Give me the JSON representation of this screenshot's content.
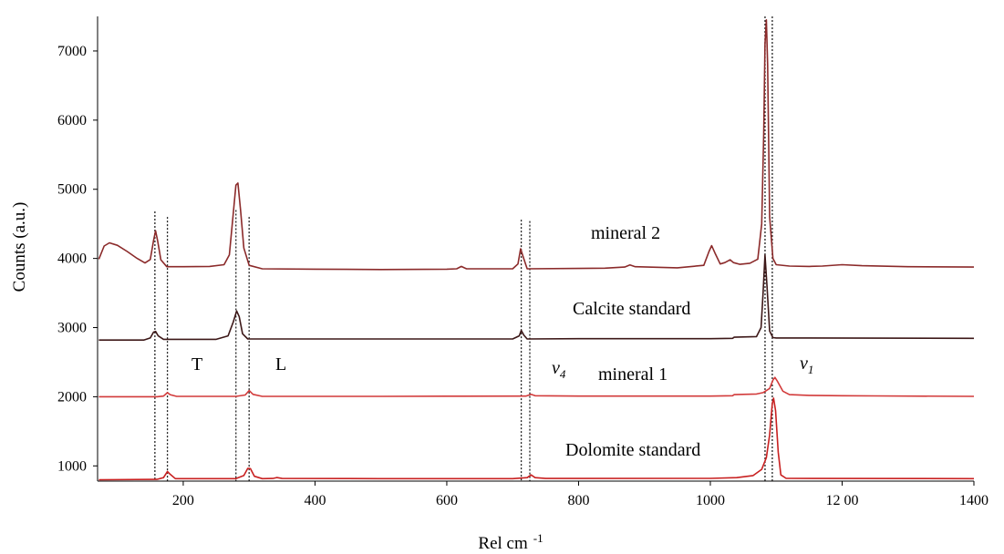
{
  "chart_data": {
    "type": "line",
    "title": "",
    "xlabel": "Rel cm",
    "xlabel_sup": "-1",
    "ylabel": "Counts (a.u.)",
    "xlim": [
      70,
      1400
    ],
    "ylim": [
      780,
      7500
    ],
    "x_ticks": [
      200,
      400,
      600,
      800,
      1000,
      1200,
      1400
    ],
    "x_tick_labels": [
      "200",
      "400",
      "600",
      "800",
      "1000",
      "12 00",
      "1400"
    ],
    "y_ticks": [
      1000,
      2000,
      3000,
      4000,
      5000,
      6000,
      7000
    ],
    "y_tick_labels": [
      "1000",
      "2000",
      "3000",
      "4000",
      "5000",
      "6000",
      "7000"
    ],
    "grid": false,
    "series": [
      {
        "name": "mineral 2",
        "color": "#8b2a2a",
        "points": [
          [
            72,
            3990
          ],
          [
            80,
            4180
          ],
          [
            88,
            4225
          ],
          [
            100,
            4190
          ],
          [
            115,
            4100
          ],
          [
            130,
            4000
          ],
          [
            142,
            3935
          ],
          [
            150,
            3985
          ],
          [
            155,
            4260
          ],
          [
            158,
            4400
          ],
          [
            161,
            4260
          ],
          [
            166,
            3980
          ],
          [
            175,
            3880
          ],
          [
            200,
            3880
          ],
          [
            240,
            3885
          ],
          [
            262,
            3910
          ],
          [
            270,
            4050
          ],
          [
            276,
            4650
          ],
          [
            280,
            5060
          ],
          [
            283,
            5090
          ],
          [
            287,
            4700
          ],
          [
            292,
            4150
          ],
          [
            300,
            3900
          ],
          [
            320,
            3850
          ],
          [
            400,
            3845
          ],
          [
            500,
            3840
          ],
          [
            600,
            3845
          ],
          [
            615,
            3850
          ],
          [
            622,
            3885
          ],
          [
            630,
            3850
          ],
          [
            700,
            3850
          ],
          [
            708,
            3920
          ],
          [
            712,
            4140
          ],
          [
            716,
            4020
          ],
          [
            722,
            3850
          ],
          [
            800,
            3855
          ],
          [
            840,
            3860
          ],
          [
            870,
            3875
          ],
          [
            878,
            3905
          ],
          [
            886,
            3880
          ],
          [
            950,
            3865
          ],
          [
            990,
            3900
          ],
          [
            998,
            4100
          ],
          [
            1002,
            4185
          ],
          [
            1007,
            4080
          ],
          [
            1015,
            3920
          ],
          [
            1022,
            3940
          ],
          [
            1030,
            3980
          ],
          [
            1035,
            3940
          ],
          [
            1045,
            3915
          ],
          [
            1060,
            3930
          ],
          [
            1072,
            3990
          ],
          [
            1078,
            4500
          ],
          [
            1081,
            5800
          ],
          [
            1083,
            7100
          ],
          [
            1085,
            7450
          ],
          [
            1087,
            6800
          ],
          [
            1090,
            4600
          ],
          [
            1095,
            4000
          ],
          [
            1100,
            3910
          ],
          [
            1120,
            3890
          ],
          [
            1150,
            3885
          ],
          [
            1170,
            3890
          ],
          [
            1200,
            3910
          ],
          [
            1230,
            3895
          ],
          [
            1300,
            3880
          ],
          [
            1400,
            3875
          ]
        ]
      },
      {
        "name": "Calcite standard",
        "color": "#3d1818",
        "points": [
          [
            72,
            2820
          ],
          [
            140,
            2820
          ],
          [
            150,
            2850
          ],
          [
            155,
            2935
          ],
          [
            158,
            2945
          ],
          [
            162,
            2880
          ],
          [
            170,
            2830
          ],
          [
            250,
            2830
          ],
          [
            268,
            2880
          ],
          [
            276,
            3080
          ],
          [
            281,
            3240
          ],
          [
            285,
            3160
          ],
          [
            290,
            2910
          ],
          [
            298,
            2835
          ],
          [
            400,
            2835
          ],
          [
            600,
            2835
          ],
          [
            700,
            2835
          ],
          [
            710,
            2880
          ],
          [
            713,
            2960
          ],
          [
            717,
            2890
          ],
          [
            722,
            2835
          ],
          [
            800,
            2840
          ],
          [
            1000,
            2840
          ],
          [
            1034,
            2845
          ],
          [
            1036,
            2860
          ],
          [
            1070,
            2870
          ],
          [
            1077,
            3000
          ],
          [
            1080,
            3500
          ],
          [
            1083,
            4050
          ],
          [
            1086,
            3600
          ],
          [
            1090,
            2950
          ],
          [
            1095,
            2855
          ],
          [
            1100,
            2850
          ],
          [
            1400,
            2845
          ]
        ]
      },
      {
        "name": "mineral 1",
        "color": "#d23a3a",
        "points": [
          [
            72,
            2000
          ],
          [
            160,
            2000
          ],
          [
            170,
            2010
          ],
          [
            176,
            2060
          ],
          [
            180,
            2030
          ],
          [
            190,
            2005
          ],
          [
            280,
            2005
          ],
          [
            294,
            2025
          ],
          [
            300,
            2090
          ],
          [
            306,
            2035
          ],
          [
            320,
            2005
          ],
          [
            500,
            2005
          ],
          [
            600,
            2008
          ],
          [
            720,
            2010
          ],
          [
            728,
            2035
          ],
          [
            734,
            2015
          ],
          [
            800,
            2010
          ],
          [
            1000,
            2010
          ],
          [
            1034,
            2015
          ],
          [
            1036,
            2030
          ],
          [
            1070,
            2040
          ],
          [
            1080,
            2060
          ],
          [
            1090,
            2120
          ],
          [
            1095,
            2240
          ],
          [
            1098,
            2280
          ],
          [
            1102,
            2220
          ],
          [
            1110,
            2080
          ],
          [
            1120,
            2030
          ],
          [
            1150,
            2020
          ],
          [
            1200,
            2015
          ],
          [
            1250,
            2012
          ],
          [
            1400,
            2005
          ]
        ]
      },
      {
        "name": "Dolomite standard",
        "color": "#c82020",
        "points": [
          [
            72,
            800
          ],
          [
            160,
            805
          ],
          [
            170,
            830
          ],
          [
            176,
            920
          ],
          [
            180,
            880
          ],
          [
            188,
            815
          ],
          [
            280,
            815
          ],
          [
            292,
            860
          ],
          [
            298,
            965
          ],
          [
            302,
            960
          ],
          [
            308,
            850
          ],
          [
            320,
            815
          ],
          [
            336,
            818
          ],
          [
            342,
            832
          ],
          [
            350,
            818
          ],
          [
            500,
            815
          ],
          [
            700,
            815
          ],
          [
            722,
            830
          ],
          [
            728,
            870
          ],
          [
            734,
            830
          ],
          [
            750,
            818
          ],
          [
            1000,
            820
          ],
          [
            1040,
            830
          ],
          [
            1065,
            860
          ],
          [
            1078,
            950
          ],
          [
            1085,
            1120
          ],
          [
            1090,
            1450
          ],
          [
            1094,
            1900
          ],
          [
            1096,
            1980
          ],
          [
            1099,
            1800
          ],
          [
            1103,
            1200
          ],
          [
            1107,
            870
          ],
          [
            1115,
            820
          ],
          [
            1400,
            815
          ]
        ]
      }
    ],
    "reference_lines_x": [
      [
        157,
        4680
      ],
      [
        176,
        4600
      ],
      [
        280,
        4700
      ],
      [
        300,
        4600
      ],
      [
        713,
        4560
      ],
      [
        726,
        4540
      ],
      [
        1083,
        7500
      ],
      [
        1094,
        7500
      ]
    ],
    "annotations": {
      "mineral_2": "mineral 2",
      "calcite": "Calcite standard",
      "T": "T",
      "L": "L",
      "v4": "v",
      "v4_sub": "4",
      "mineral_1": "mineral 1",
      "v1": "v",
      "v1_sub": "1",
      "dolomite": "Dolomite standard"
    }
  }
}
